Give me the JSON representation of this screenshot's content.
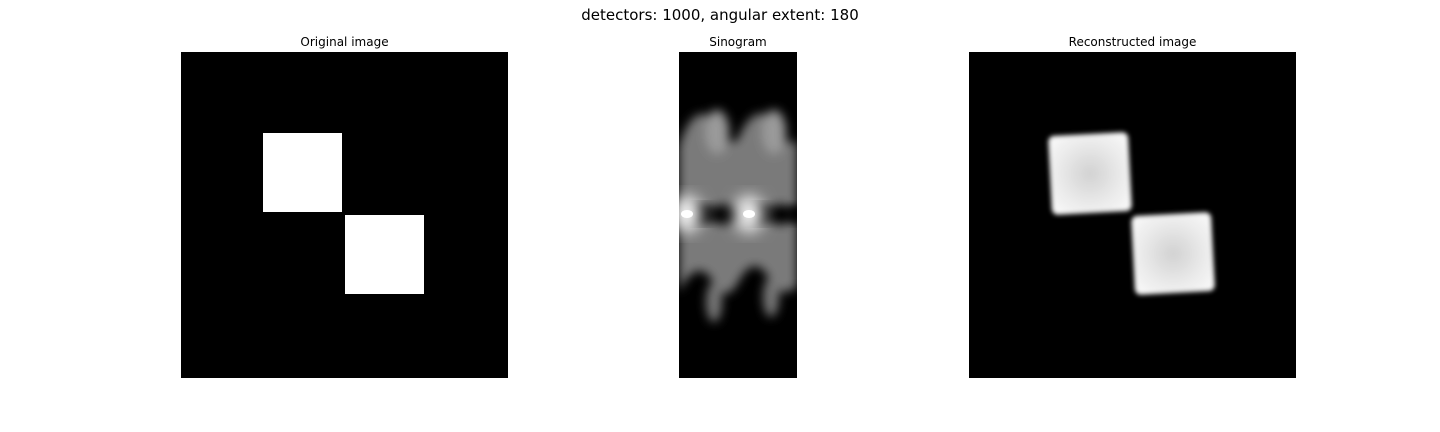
{
  "figure": {
    "title": "detectors: 1000, angular extent: 180"
  },
  "panels": [
    {
      "id": "original",
      "title": "Original image"
    },
    {
      "id": "sinogram",
      "title": "Sinogram"
    },
    {
      "id": "reconstructed",
      "title": "Reconstructed image"
    }
  ],
  "colors": {
    "background": "#000000",
    "foreground": "#ffffff",
    "mid_gray": "#808080"
  }
}
